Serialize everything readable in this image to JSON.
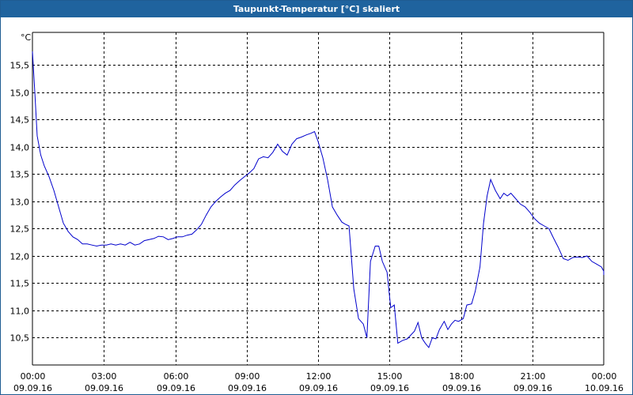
{
  "window": {
    "title": "Taupunkt-Temperatur [°C] skaliert"
  },
  "chart_data": {
    "type": "line",
    "title": "Taupunkt-Temperatur [°C] skaliert",
    "ylabel": "°C",
    "xlabel": "",
    "ylim": [
      10.0,
      16.1
    ],
    "xlim": [
      "09.09.16 00:00",
      "10.09.16 00:00"
    ],
    "y_ticks": [
      {
        "value": 15.5,
        "label": "15,5"
      },
      {
        "value": 15.0,
        "label": "15,0"
      },
      {
        "value": 14.5,
        "label": "14,5"
      },
      {
        "value": 14.0,
        "label": "14,0"
      },
      {
        "value": 13.5,
        "label": "13,5"
      },
      {
        "value": 13.0,
        "label": "13,0"
      },
      {
        "value": 12.5,
        "label": "12,5"
      },
      {
        "value": 12.0,
        "label": "12,0"
      },
      {
        "value": 11.5,
        "label": "11,5"
      },
      {
        "value": 11.0,
        "label": "11,0"
      },
      {
        "value": 10.5,
        "label": "10,5"
      }
    ],
    "x_ticks": [
      {
        "hour": 0,
        "time": "00:00",
        "date": "09.09.16"
      },
      {
        "hour": 3,
        "time": "03:00",
        "date": "09.09.16"
      },
      {
        "hour": 6,
        "time": "06:00",
        "date": "09.09.16"
      },
      {
        "hour": 9,
        "time": "09:00",
        "date": "09.09.16"
      },
      {
        "hour": 12,
        "time": "12:00",
        "date": "09.09.16"
      },
      {
        "hour": 15,
        "time": "15:00",
        "date": "09.09.16"
      },
      {
        "hour": 18,
        "time": "18:00",
        "date": "09.09.16"
      },
      {
        "hour": 21,
        "time": "21:00",
        "date": "09.09.16"
      },
      {
        "hour": 24,
        "time": "00:00",
        "date": "10.09.16"
      }
    ],
    "grid": true,
    "series": [
      {
        "color": "#0000cc",
        "points": [
          [
            0.0,
            15.75
          ],
          [
            0.1,
            15.0
          ],
          [
            0.2,
            14.2
          ],
          [
            0.35,
            13.85
          ],
          [
            0.5,
            13.65
          ],
          [
            0.7,
            13.45
          ],
          [
            0.9,
            13.2
          ],
          [
            1.1,
            12.9
          ],
          [
            1.3,
            12.6
          ],
          [
            1.5,
            12.45
          ],
          [
            1.7,
            12.35
          ],
          [
            1.9,
            12.3
          ],
          [
            2.1,
            12.22
          ],
          [
            2.3,
            12.22
          ],
          [
            2.5,
            12.2
          ],
          [
            2.7,
            12.18
          ],
          [
            2.9,
            12.2
          ],
          [
            3.1,
            12.2
          ],
          [
            3.3,
            12.22
          ],
          [
            3.5,
            12.2
          ],
          [
            3.7,
            12.22
          ],
          [
            3.9,
            12.2
          ],
          [
            4.1,
            12.25
          ],
          [
            4.3,
            12.2
          ],
          [
            4.5,
            12.22
          ],
          [
            4.7,
            12.28
          ],
          [
            4.9,
            12.3
          ],
          [
            5.1,
            12.32
          ],
          [
            5.3,
            12.36
          ],
          [
            5.5,
            12.35
          ],
          [
            5.7,
            12.3
          ],
          [
            5.9,
            12.32
          ],
          [
            6.1,
            12.35
          ],
          [
            6.3,
            12.35
          ],
          [
            6.5,
            12.38
          ],
          [
            6.7,
            12.4
          ],
          [
            6.9,
            12.48
          ],
          [
            7.1,
            12.58
          ],
          [
            7.3,
            12.75
          ],
          [
            7.5,
            12.9
          ],
          [
            7.7,
            13.0
          ],
          [
            7.9,
            13.08
          ],
          [
            8.1,
            13.15
          ],
          [
            8.3,
            13.2
          ],
          [
            8.5,
            13.3
          ],
          [
            8.7,
            13.38
          ],
          [
            8.9,
            13.45
          ],
          [
            9.1,
            13.52
          ],
          [
            9.3,
            13.6
          ],
          [
            9.5,
            13.78
          ],
          [
            9.7,
            13.82
          ],
          [
            9.9,
            13.8
          ],
          [
            10.1,
            13.9
          ],
          [
            10.3,
            14.05
          ],
          [
            10.5,
            13.92
          ],
          [
            10.7,
            13.85
          ],
          [
            10.9,
            14.05
          ],
          [
            11.1,
            14.15
          ],
          [
            11.3,
            14.18
          ],
          [
            11.5,
            14.22
          ],
          [
            11.7,
            14.25
          ],
          [
            11.85,
            14.28
          ],
          [
            12.0,
            14.1
          ],
          [
            12.2,
            13.8
          ],
          [
            12.4,
            13.4
          ],
          [
            12.6,
            12.9
          ],
          [
            12.8,
            12.75
          ],
          [
            13.0,
            12.62
          ],
          [
            13.15,
            12.58
          ],
          [
            13.3,
            12.55
          ],
          [
            13.5,
            11.4
          ],
          [
            13.7,
            10.85
          ],
          [
            13.9,
            10.75
          ],
          [
            14.05,
            10.5
          ],
          [
            14.2,
            11.9
          ],
          [
            14.4,
            12.18
          ],
          [
            14.55,
            12.18
          ],
          [
            14.7,
            11.9
          ],
          [
            14.9,
            11.7
          ],
          [
            15.05,
            11.05
          ],
          [
            15.2,
            11.1
          ],
          [
            15.35,
            10.4
          ],
          [
            15.55,
            10.45
          ],
          [
            15.75,
            10.48
          ],
          [
            15.9,
            10.55
          ],
          [
            16.05,
            10.62
          ],
          [
            16.2,
            10.78
          ],
          [
            16.35,
            10.5
          ],
          [
            16.5,
            10.4
          ],
          [
            16.65,
            10.32
          ],
          [
            16.8,
            10.5
          ],
          [
            16.95,
            10.48
          ],
          [
            17.1,
            10.65
          ],
          [
            17.3,
            10.8
          ],
          [
            17.45,
            10.65
          ],
          [
            17.6,
            10.75
          ],
          [
            17.75,
            10.82
          ],
          [
            17.9,
            10.8
          ],
          [
            18.1,
            10.85
          ],
          [
            18.25,
            11.1
          ],
          [
            18.45,
            11.12
          ],
          [
            18.6,
            11.35
          ],
          [
            18.8,
            11.8
          ],
          [
            18.95,
            12.6
          ],
          [
            19.1,
            13.1
          ],
          [
            19.25,
            13.4
          ],
          [
            19.45,
            13.2
          ],
          [
            19.65,
            13.05
          ],
          [
            19.8,
            13.15
          ],
          [
            19.95,
            13.1
          ],
          [
            20.1,
            13.15
          ],
          [
            20.3,
            13.05
          ],
          [
            20.5,
            12.95
          ],
          [
            20.7,
            12.9
          ],
          [
            20.9,
            12.8
          ],
          [
            21.1,
            12.68
          ],
          [
            21.3,
            12.6
          ],
          [
            21.5,
            12.55
          ],
          [
            21.7,
            12.5
          ],
          [
            21.9,
            12.32
          ],
          [
            22.1,
            12.15
          ],
          [
            22.3,
            11.95
          ],
          [
            22.5,
            11.92
          ],
          [
            22.7,
            11.97
          ],
          [
            22.9,
            11.98
          ],
          [
            23.1,
            11.97
          ],
          [
            23.3,
            12.0
          ],
          [
            23.5,
            11.9
          ],
          [
            23.7,
            11.85
          ],
          [
            23.9,
            11.8
          ],
          [
            24.1,
            11.72
          ],
          [
            24.3,
            11.66
          ],
          [
            24.55,
            11.65
          ]
        ]
      }
    ]
  }
}
